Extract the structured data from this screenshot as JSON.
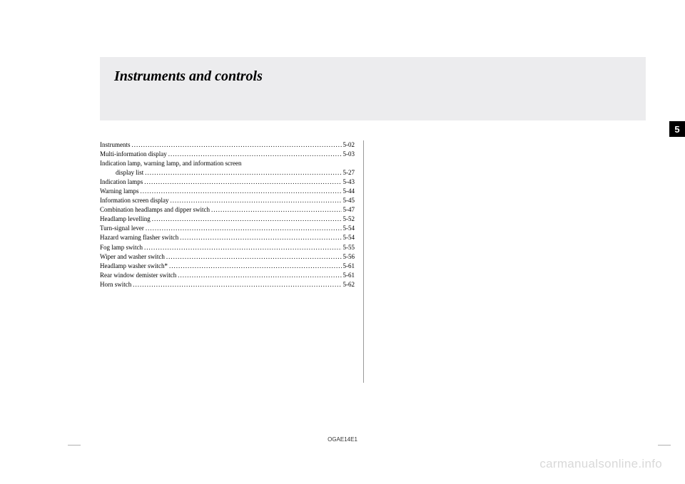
{
  "title": "Instruments and controls",
  "chapter_number": "5",
  "doc_code": "OGAE14E1",
  "watermark": "carmanualsonline.info",
  "toc": [
    {
      "label": "Instruments",
      "page": "5-02",
      "indent": false
    },
    {
      "label": "Multi-information display",
      "page": "5-03",
      "indent": false
    },
    {
      "label": "Indication lamp, warning lamp, and information screen",
      "page": "",
      "indent": false,
      "no_dots": true
    },
    {
      "label": "display list",
      "page": "5-27",
      "indent": true
    },
    {
      "label": "Indication lamps",
      "page": "5-43",
      "indent": false
    },
    {
      "label": "Warning lamps",
      "page": "5-44",
      "indent": false
    },
    {
      "label": "Information screen display",
      "page": "5-45",
      "indent": false
    },
    {
      "label": "Combination headlamps and dipper switch",
      "page": "5-47",
      "indent": false
    },
    {
      "label": "Headlamp levelling",
      "page": "5-52",
      "indent": false
    },
    {
      "label": "Turn-signal lever",
      "page": "5-54",
      "indent": false
    },
    {
      "label": "Hazard warning flasher switch",
      "page": "5-54",
      "indent": false
    },
    {
      "label": "Fog lamp switch",
      "page": "5-55",
      "indent": false
    },
    {
      "label": "Wiper and washer switch",
      "page": "5-56",
      "indent": false
    },
    {
      "label": "Headlamp washer switch*",
      "page": "5-61",
      "indent": false
    },
    {
      "label": "Rear window demister switch",
      "page": "5-61",
      "indent": false
    },
    {
      "label": "Horn switch",
      "page": "5-62",
      "indent": false
    }
  ]
}
